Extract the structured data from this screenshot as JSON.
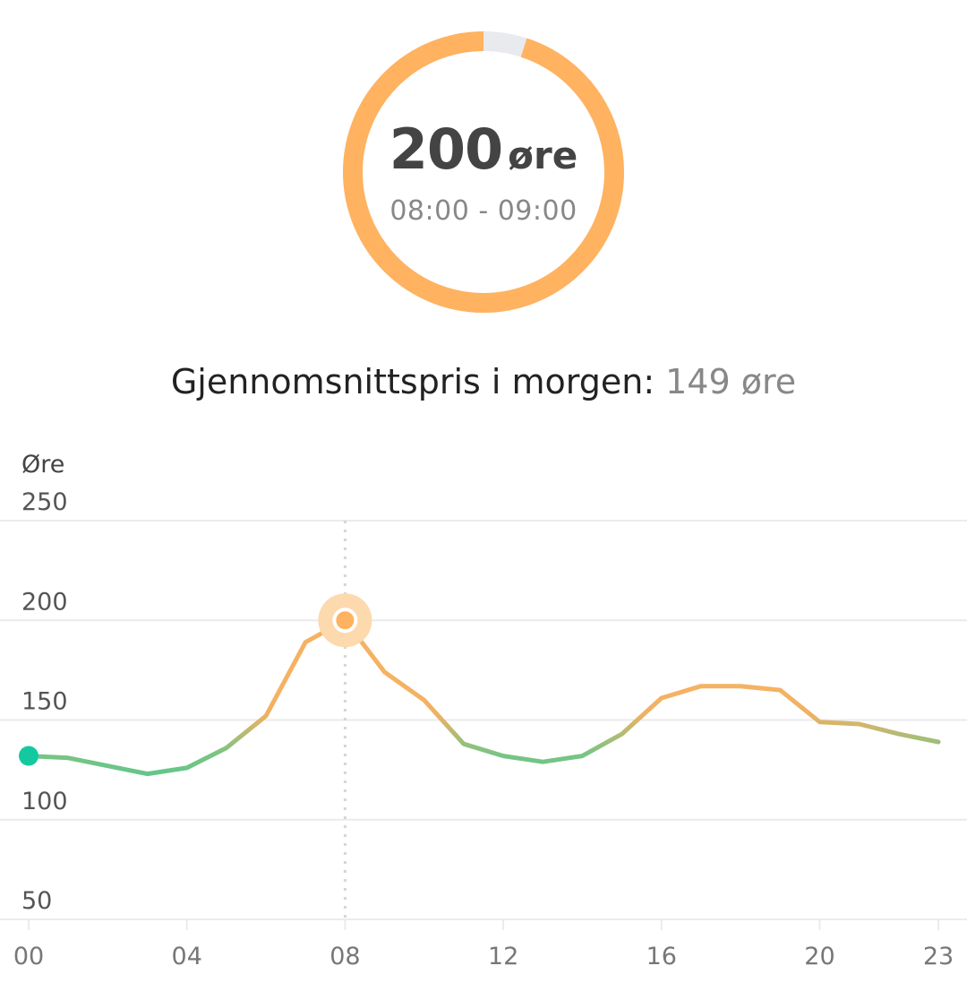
{
  "current": {
    "price": "200",
    "unit": "øre",
    "time_range": "08:00 - 09:00",
    "gauge_fraction": 0.95
  },
  "average": {
    "label": "Gjennomsnittspris i morgen:",
    "value": "149 øre"
  },
  "colors": {
    "accent": "#FFB260",
    "line_orange": "#F5B262",
    "line_green": "#5CC68C",
    "start_dot": "#14C9A0",
    "gauge_track": "#E9EAEE",
    "grid": "#EBEBEB"
  },
  "chart_data": {
    "type": "line",
    "ylabel": "Øre",
    "xlabel": "",
    "ylim": [
      50,
      250
    ],
    "yticks": [
      "250",
      "200",
      "150",
      "100",
      "50"
    ],
    "xlim": [
      0,
      23
    ],
    "xticks": [
      "00",
      "04",
      "08",
      "12",
      "16",
      "20",
      "23"
    ],
    "grid": true,
    "highlight_hour": 8,
    "x": [
      0,
      1,
      2,
      3,
      4,
      5,
      6,
      7,
      8,
      9,
      10,
      11,
      12,
      13,
      14,
      15,
      16,
      17,
      18,
      19,
      20,
      21,
      22,
      23
    ],
    "series": [
      {
        "values": [
          132,
          131,
          127,
          123,
          126,
          136,
          152,
          189,
          200,
          174,
          160,
          138,
          132,
          129,
          132,
          143,
          161,
          167,
          167,
          165,
          149,
          148,
          143,
          139
        ]
      }
    ]
  }
}
